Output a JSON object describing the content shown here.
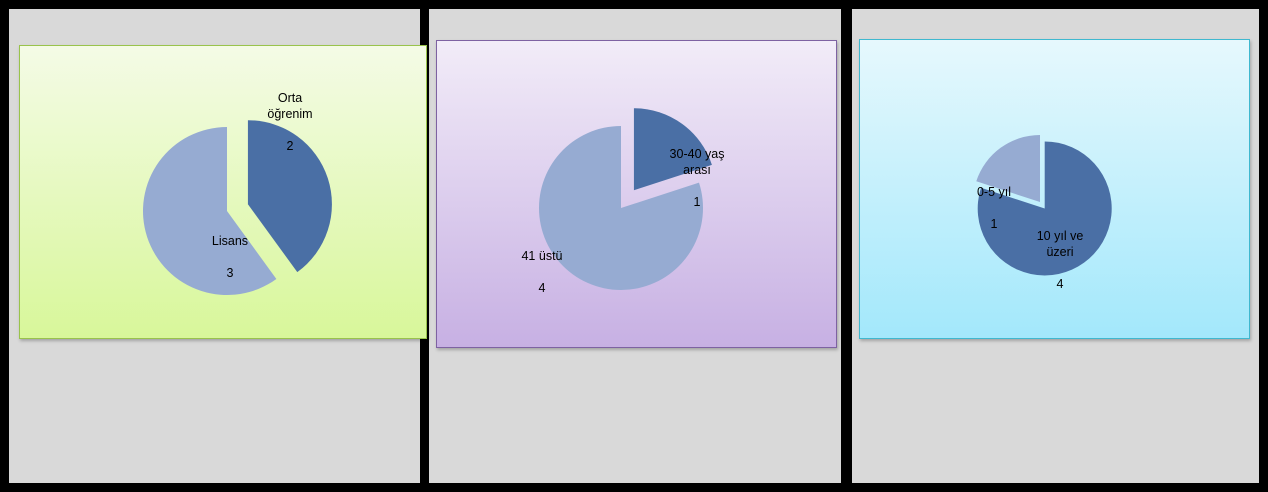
{
  "chart_data": [
    {
      "type": "pie",
      "categories": [
        "Orta öğrenim",
        "Lisans"
      ],
      "values": [
        2,
        3
      ],
      "data_labels": [
        {
          "category": "Orta\nöğrenim",
          "value": "2"
        },
        {
          "category": "Lisans",
          "value": "3"
        }
      ],
      "colors": [
        "#4a6fa5",
        "#96abd2"
      ]
    },
    {
      "type": "pie",
      "categories": [
        "30-40 yaş arası",
        "41 üstü"
      ],
      "values": [
        1,
        4
      ],
      "data_labels": [
        {
          "category": "30-40 yaş\narası",
          "value": "1"
        },
        {
          "category": "41 üstü",
          "value": "4"
        }
      ],
      "colors": [
        "#4a6fa5",
        "#96abd2"
      ]
    },
    {
      "type": "pie",
      "categories": [
        "10 yıl ve üzeri",
        "0-5 yıl"
      ],
      "values": [
        4,
        1
      ],
      "data_labels": [
        {
          "category": "10 yıl ve\nüzeri",
          "value": "4"
        },
        {
          "category": "0-5 yıl",
          "value": "1"
        }
      ],
      "colors": [
        "#4a6fa5",
        "#96abd2"
      ]
    }
  ]
}
